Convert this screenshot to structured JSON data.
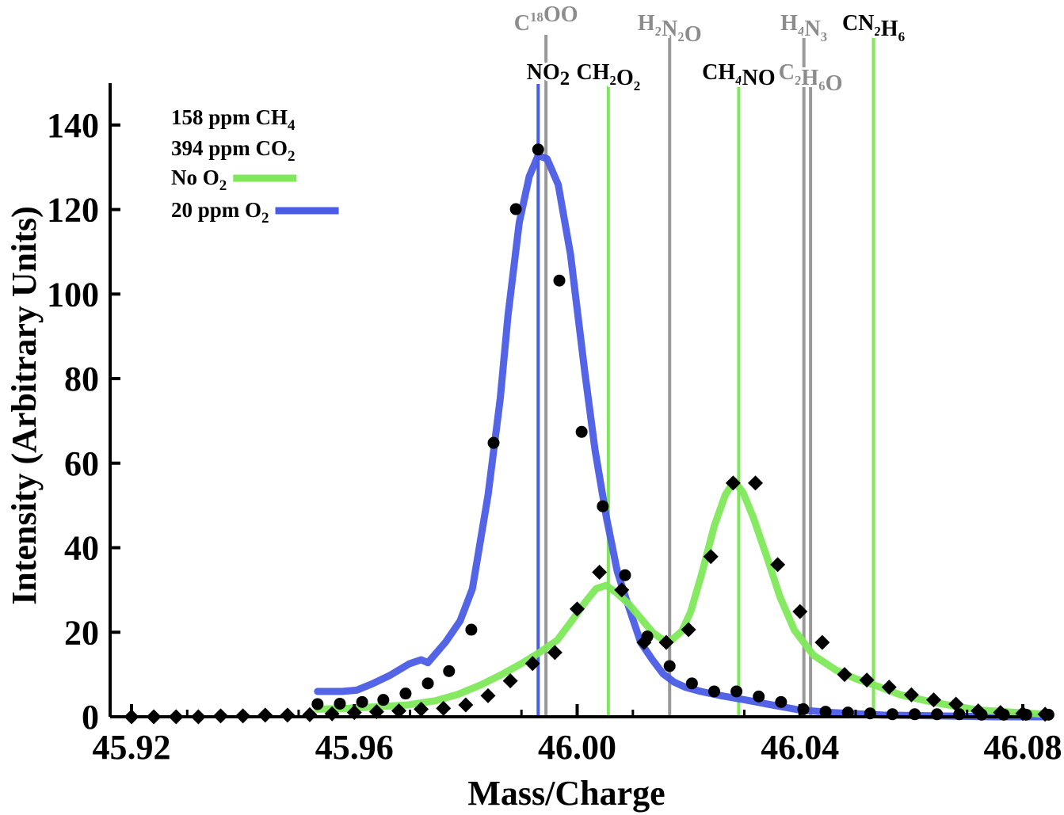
{
  "chart_data": {
    "type": "line",
    "title": "",
    "xlabel": "Mass/Charge",
    "ylabel": "Intensity (Arbitrary Units)",
    "xlim": [
      45.92,
      46.08
    ],
    "ylim": [
      0,
      150
    ],
    "xticks": [
      45.92,
      45.96,
      46.0,
      46.04,
      46.08
    ],
    "xtick_labels": [
      "45.92",
      "45.96",
      "46.00",
      "46.04",
      "46.08"
    ],
    "yticks": [
      0,
      20,
      40,
      60,
      80,
      100,
      120,
      140
    ],
    "ytick_labels": [
      "0",
      "20",
      "40",
      "60",
      "80",
      "100",
      "120",
      "140"
    ],
    "legend": {
      "position": "top-left",
      "text_entries": [
        {
          "base": "158 ppm CH",
          "sub": "4"
        },
        {
          "base": "394 ppm CO",
          "sub": "2"
        }
      ],
      "series_entries": [
        {
          "base": "No O",
          "sub": "2",
          "color": "#7ee85a"
        },
        {
          "base": "20 ppm O",
          "sub": "2",
          "color": "#4a5ce6"
        }
      ]
    },
    "series": [
      {
        "name": "20 ppm O2 fit",
        "kind": "line",
        "color": "#4a5ce6",
        "x": [
          45.9534,
          45.9578,
          45.9604,
          45.9632,
          45.9664,
          45.9698,
          45.972,
          45.9732,
          45.9764,
          45.979,
          45.9812,
          45.984,
          45.9862,
          45.9876,
          45.9896,
          45.9914,
          45.993,
          45.9946,
          45.9966,
          45.9988,
          46.0014,
          46.0032,
          46.0052,
          46.0072,
          46.0094,
          46.0114,
          46.0134,
          46.0154,
          46.0174,
          46.0194,
          46.0222,
          46.0258,
          46.0302,
          46.035,
          46.04,
          46.046,
          46.055,
          46.065,
          46.075,
          46.084
        ],
        "y": [
          6.0,
          6.0,
          6.3,
          7.8,
          9.8,
          12.5,
          13.5,
          12.8,
          17.7,
          22.7,
          30.3,
          52.4,
          75.4,
          95.1,
          116.9,
          127.8,
          132.8,
          132.0,
          125.9,
          109.4,
          81.3,
          63.2,
          47.5,
          34.4,
          25.4,
          17.6,
          13.7,
          10.2,
          8.2,
          7.0,
          6.0,
          5.0,
          4.0,
          2.8,
          1.6,
          1.0,
          0.4,
          0.2,
          0.0,
          0.0
        ]
      },
      {
        "name": "No O2 fit",
        "kind": "line",
        "color": "#7ee85a",
        "x": [
          45.9534,
          45.9592,
          45.9644,
          45.9696,
          45.9746,
          45.9786,
          45.9828,
          45.9866,
          45.99,
          45.9932,
          45.9964,
          45.9992,
          46.0016,
          46.0034,
          46.0052,
          46.0072,
          46.0094,
          46.0116,
          46.0136,
          46.0154,
          46.017,
          46.0188,
          46.0204,
          46.0224,
          46.0246,
          46.0266,
          46.0282,
          46.0298,
          46.0316,
          46.034,
          46.0364,
          46.039,
          46.0424,
          46.0464,
          46.05,
          46.054,
          46.058,
          46.064,
          46.072,
          46.084
        ],
        "y": [
          1.8,
          2.0,
          2.4,
          2.8,
          3.8,
          5.3,
          7.6,
          10.1,
          12.6,
          15.2,
          18.1,
          23.0,
          27.4,
          30.3,
          31.1,
          29.2,
          26.5,
          23.0,
          19.9,
          18.2,
          18.2,
          20.3,
          24.9,
          34.0,
          45.1,
          52.5,
          55.8,
          53.0,
          47.2,
          38.0,
          28.4,
          20.5,
          14.6,
          11.1,
          9.0,
          7.2,
          5.2,
          3.4,
          1.6,
          0.6
        ]
      },
      {
        "name": "20 ppm O2 data",
        "kind": "points",
        "marker": "circle",
        "color": "#000000",
        "x": [
          45.9534,
          45.9574,
          45.9614,
          45.9652,
          45.9692,
          45.9732,
          45.977,
          45.981,
          45.985,
          45.989,
          45.993,
          45.9968,
          46.0008,
          46.0046,
          46.0086,
          46.0126,
          46.0166,
          46.0206,
          46.0246,
          46.0286,
          46.0326,
          46.0366,
          46.0406,
          46.0446,
          46.0486,
          46.0526,
          46.0566,
          46.0606,
          46.0646,
          46.0686,
          46.0726,
          46.0766,
          46.0806,
          46.0846
        ],
        "y": [
          3.0,
          3.1,
          3.5,
          4.0,
          5.5,
          7.9,
          10.8,
          20.6,
          64.8,
          120.1,
          134.2,
          103.2,
          67.4,
          49.8,
          33.5,
          19.0,
          12.0,
          7.9,
          6.0,
          6.0,
          4.8,
          3.5,
          1.8,
          1.2,
          1.0,
          0.8,
          0.6,
          0.6,
          0.6,
          0.6,
          0.5,
          0.5,
          0.5,
          0.5
        ]
      },
      {
        "name": "No O2 data",
        "kind": "points",
        "marker": "diamond",
        "color": "#000000",
        "x": [
          45.92,
          45.924,
          45.928,
          45.932,
          45.936,
          45.94,
          45.944,
          45.948,
          45.952,
          45.956,
          45.96,
          45.964,
          45.968,
          45.972,
          45.976,
          45.98,
          45.984,
          45.988,
          45.992,
          45.996,
          46.0,
          46.004,
          46.008,
          46.012,
          46.016,
          46.02,
          46.024,
          46.028,
          46.032,
          46.036,
          46.04,
          46.044,
          46.048,
          46.052,
          46.056,
          46.06,
          46.064,
          46.068,
          46.072,
          46.076,
          46.08,
          46.084
        ],
        "y": [
          0.0,
          0.0,
          0.0,
          0.0,
          0.2,
          0.2,
          0.4,
          0.4,
          0.5,
          0.7,
          1.0,
          1.2,
          1.4,
          1.8,
          2.0,
          2.8,
          5.0,
          8.5,
          12.6,
          15.2,
          25.5,
          34.2,
          30.0,
          17.6,
          17.6,
          20.6,
          37.9,
          55.3,
          55.3,
          36.0,
          24.9,
          17.6,
          10.0,
          8.7,
          7.0,
          5.2,
          4.0,
          3.0,
          1.4,
          1.0,
          0.8,
          0.6
        ]
      }
    ],
    "reference_lines": [
      {
        "x": 45.993,
        "color": "#4a5ce6",
        "tier": "lower",
        "parts": [
          {
            "t": "NO"
          },
          {
            "t": "2",
            "sub": true
          }
        ],
        "label_color": "#000000",
        "big": true
      },
      {
        "x": 45.9944,
        "color": "#999999",
        "tier": "upper",
        "parts": [
          {
            "t": "C"
          },
          {
            "t": "18",
            "sup": true
          },
          {
            "t": "OO"
          }
        ],
        "label_color": "#8c8c8c"
      },
      {
        "x": 46.0056,
        "color": "#7ee85a",
        "tier": "lower",
        "parts": [
          {
            "t": "CH"
          },
          {
            "t": "2",
            "sub": true
          },
          {
            "t": "O"
          },
          {
            "t": "2",
            "sub": true
          }
        ],
        "label_color": "#000000"
      },
      {
        "x": 46.0166,
        "color": "#999999",
        "tier": "upper",
        "parts": [
          {
            "t": "H"
          },
          {
            "t": "2",
            "sub": true
          },
          {
            "t": "N"
          },
          {
            "t": "2",
            "sub": true
          },
          {
            "t": "O"
          }
        ],
        "label_color": "#8c8c8c"
      },
      {
        "x": 46.029,
        "color": "#7ee85a",
        "tier": "lower",
        "parts": [
          {
            "t": "CH"
          },
          {
            "t": "4",
            "sub": true
          },
          {
            "t": "NO"
          }
        ],
        "label_color": "#000000"
      },
      {
        "x": 46.0407,
        "color": "#999999",
        "tier": "upper",
        "parts": [
          {
            "t": "H"
          },
          {
            "t": "4",
            "sub": true
          },
          {
            "t": "N"
          },
          {
            "t": "3",
            "sub": true
          }
        ],
        "label_color": "#8c8c8c"
      },
      {
        "x": 46.0419,
        "color": "#999999",
        "tier": "lower",
        "parts": [
          {
            "t": "C"
          },
          {
            "t": "2",
            "sub": true
          },
          {
            "t": "H"
          },
          {
            "t": "6",
            "sub": true
          },
          {
            "t": "O"
          }
        ],
        "label_color": "#8c8c8c"
      },
      {
        "x": 46.0532,
        "color": "#7ee85a",
        "tier": "upper",
        "parts": [
          {
            "t": "CN"
          },
          {
            "t": "2",
            "sub": true
          },
          {
            "t": "H"
          },
          {
            "t": "6",
            "sub": true
          }
        ],
        "label_color": "#000000"
      }
    ]
  }
}
